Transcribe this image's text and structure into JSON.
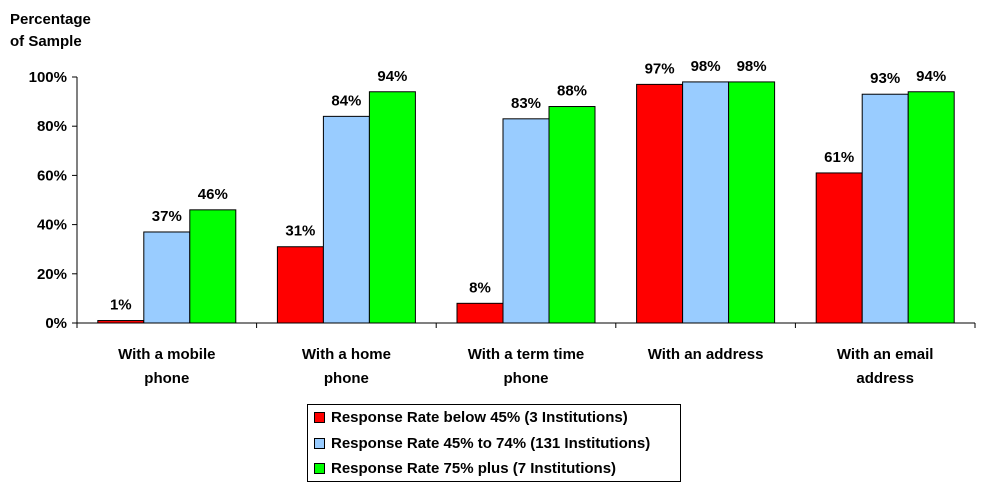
{
  "chart_data": {
    "type": "bar",
    "y_axis_title_line1": "Percentage",
    "y_axis_title_line2": "of Sample",
    "categories": [
      [
        "With a mobile",
        "phone"
      ],
      [
        "With a home",
        "phone"
      ],
      [
        "With a term time",
        "phone"
      ],
      [
        "With an address"
      ],
      [
        "With an email",
        "address"
      ]
    ],
    "series": [
      {
        "name": "Response Rate below 45% (3 Institutions)",
        "color": "#ff0000",
        "values": [
          1,
          31,
          8,
          97,
          61
        ],
        "labels": [
          "1%",
          "31%",
          "8%",
          "97%",
          "61%"
        ]
      },
      {
        "name": "Response Rate 45% to 74% (131 Institutions)",
        "color": "#99ccff",
        "values": [
          37,
          84,
          83,
          98,
          93
        ],
        "labels": [
          "37%",
          "84%",
          "83%",
          "98%",
          "93%"
        ]
      },
      {
        "name": "Response Rate 75% plus (7 Institutions)",
        "color": "#00ff00",
        "values": [
          46,
          94,
          88,
          98,
          94
        ],
        "labels": [
          "46%",
          "94%",
          "88%",
          "98%",
          "94%"
        ]
      }
    ],
    "yticks": [
      "0%",
      "20%",
      "40%",
      "60%",
      "80%",
      "100%"
    ],
    "ylim": [
      0,
      100
    ],
    "grid": false,
    "legend_position": "bottom"
  }
}
